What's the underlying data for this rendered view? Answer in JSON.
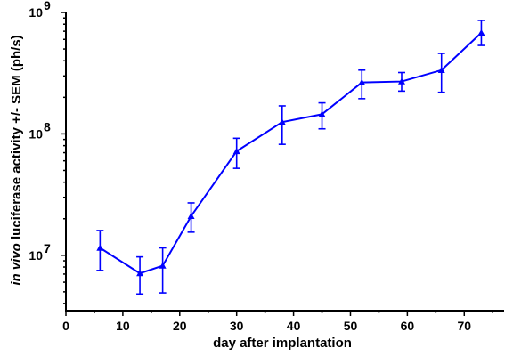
{
  "chart_data": {
    "type": "line",
    "xlabel": "day after implantation",
    "ylabel_italic": "in vivo",
    "ylabel_rest": " luciferase activity +/- SEM (ph/s)",
    "xlim": [
      0,
      77
    ],
    "ylim": [
      3500000,
      1000000000
    ],
    "y_scale": "log",
    "x_ticks": [
      0,
      10,
      20,
      30,
      40,
      50,
      60,
      70
    ],
    "x_tick_labels": [
      "0",
      "10",
      "20",
      "30",
      "40",
      "50",
      "60",
      "70"
    ],
    "y_ticks": [
      10000000,
      100000000,
      1000000000
    ],
    "y_tick_labels": [
      {
        "base": "10",
        "exp": "7"
      },
      {
        "base": "10",
        "exp": "8"
      },
      {
        "base": "10",
        "exp": "9"
      }
    ],
    "grid": false,
    "color": "#0000ff",
    "series": [
      {
        "points": [
          {
            "x": 6,
            "y": 11500000,
            "lo": 7500000,
            "hi": 16000000
          },
          {
            "x": 13,
            "y": 7100000,
            "lo": 4800000,
            "hi": 9700000
          },
          {
            "x": 17,
            "y": 8200000,
            "lo": 4900000,
            "hi": 11500000
          },
          {
            "x": 22,
            "y": 21000000,
            "lo": 15500000,
            "hi": 27000000
          },
          {
            "x": 30,
            "y": 72000000,
            "lo": 52000000,
            "hi": 92000000
          },
          {
            "x": 38,
            "y": 125000000,
            "lo": 82000000,
            "hi": 170000000
          },
          {
            "x": 45,
            "y": 145000000,
            "lo": 110000000,
            "hi": 180000000
          },
          {
            "x": 52,
            "y": 265000000,
            "lo": 195000000,
            "hi": 335000000
          },
          {
            "x": 59,
            "y": 270000000,
            "lo": 225000000,
            "hi": 320000000
          },
          {
            "x": 66,
            "y": 335000000,
            "lo": 220000000,
            "hi": 460000000
          },
          {
            "x": 73,
            "y": 680000000,
            "lo": 535000000,
            "hi": 860000000
          }
        ]
      }
    ]
  }
}
